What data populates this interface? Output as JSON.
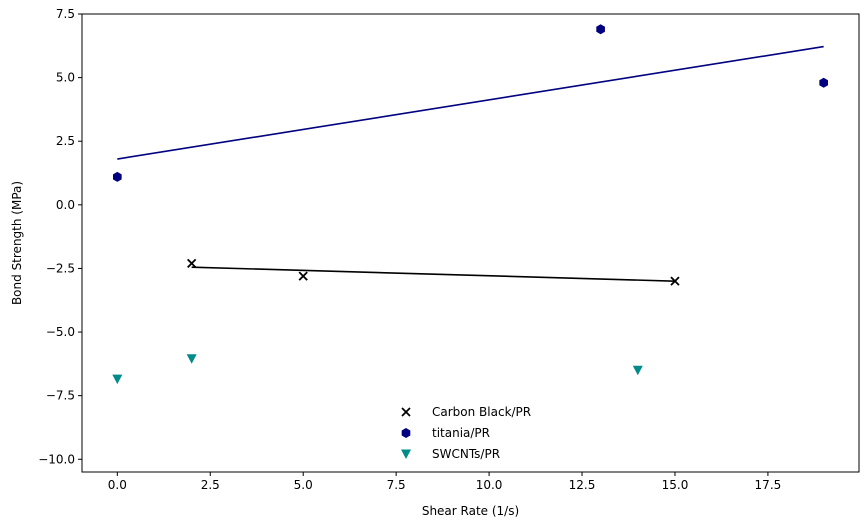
{
  "chart_data": {
    "type": "scatter",
    "title": "",
    "xlabel": "Shear Rate (1/s)",
    "ylabel": "Bond Strength (MPa)",
    "xlim": [
      -0.95,
      19.95
    ],
    "ylim": [
      -10.5,
      7.5
    ],
    "xticks": [
      0.0,
      2.5,
      5.0,
      7.5,
      10.0,
      12.5,
      15.0,
      17.5
    ],
    "xtick_labels": [
      "0.0",
      "2.5",
      "5.0",
      "7.5",
      "10.0",
      "12.5",
      "15.0",
      "17.5"
    ],
    "yticks": [
      -10.0,
      -7.5,
      -5.0,
      -2.5,
      0.0,
      2.5,
      5.0,
      7.5
    ],
    "ytick_labels": [
      "−10.0",
      "−7.5",
      "−5.0",
      "−2.5",
      "0.0",
      "2.5",
      "5.0",
      "7.5"
    ],
    "grid": false,
    "legend_position": "bottom-center",
    "series": [
      {
        "name": "Carbon Black/PR",
        "marker": "x",
        "color": "#000000",
        "x": [
          2,
          5,
          15
        ],
        "y": [
          -2.3,
          -2.8,
          -3.0
        ],
        "fit_line": {
          "x": [
            2,
            15
          ],
          "y": [
            -2.45,
            -3.0
          ]
        }
      },
      {
        "name": "titania/PR",
        "marker": "hexagon",
        "color": "#000080",
        "x": [
          0,
          13,
          19
        ],
        "y": [
          1.1,
          6.9,
          4.8
        ],
        "fit_line": {
          "x": [
            0,
            19
          ],
          "y": [
            1.8,
            6.22
          ]
        }
      },
      {
        "name": "SWCNTs/PR",
        "marker": "triangle-down",
        "color": "#008B8B",
        "x": [
          0,
          2,
          14
        ],
        "y": [
          -6.85,
          -6.05,
          -6.5
        ]
      }
    ]
  }
}
